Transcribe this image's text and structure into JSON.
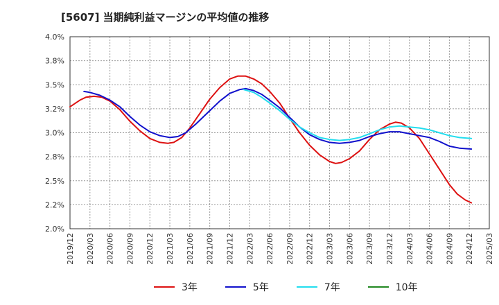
{
  "title": "[5607]  当期純利益マージンの平均値の推移",
  "chart_data": {
    "type": "line",
    "x": [
      "2019/12",
      "2020/03",
      "2020/06",
      "2020/09",
      "2020/12",
      "2021/03",
      "2021/06",
      "2021/09",
      "2021/12",
      "2022/03",
      "2022/06",
      "2022/09",
      "2022/12",
      "2023/03",
      "2023/06",
      "2023/09",
      "2023/12",
      "2024/03",
      "2024/06",
      "2024/09",
      "2024/12",
      "2025/03"
    ],
    "y_ticks": [
      "4.0%",
      "3.8%",
      "3.5%",
      "3.2%",
      "3.0%",
      "2.8%",
      "2.5%",
      "2.2%",
      "2.0%"
    ],
    "ylim": [
      2.0,
      4.0
    ],
    "grid": true,
    "legend_position": "bottom",
    "series": [
      {
        "name": "3年",
        "color": "#dd1111",
        "points": [
          [
            0,
            3.27
          ],
          [
            0.5,
            3.34
          ],
          [
            0.8,
            3.37
          ],
          [
            1.2,
            3.38
          ],
          [
            1.6,
            3.37
          ],
          [
            2,
            3.33
          ],
          [
            2.5,
            3.24
          ],
          [
            3,
            3.12
          ],
          [
            3.5,
            3.02
          ],
          [
            4,
            2.94
          ],
          [
            4.5,
            2.9
          ],
          [
            4.9,
            2.89
          ],
          [
            5.2,
            2.9
          ],
          [
            5.6,
            2.95
          ],
          [
            6,
            3.05
          ],
          [
            6.5,
            3.2
          ],
          [
            7,
            3.35
          ],
          [
            7.5,
            3.47
          ],
          [
            8,
            3.56
          ],
          [
            8.4,
            3.59
          ],
          [
            8.8,
            3.59
          ],
          [
            9.2,
            3.56
          ],
          [
            9.6,
            3.51
          ],
          [
            10,
            3.43
          ],
          [
            10.5,
            3.31
          ],
          [
            11,
            3.15
          ],
          [
            11.5,
            3.0
          ],
          [
            12,
            2.87
          ],
          [
            12.5,
            2.77
          ],
          [
            13,
            2.7
          ],
          [
            13.3,
            2.68
          ],
          [
            13.6,
            2.69
          ],
          [
            14,
            2.73
          ],
          [
            14.5,
            2.81
          ],
          [
            15,
            2.93
          ],
          [
            15.5,
            3.03
          ],
          [
            16,
            3.09
          ],
          [
            16.3,
            3.11
          ],
          [
            16.6,
            3.1
          ],
          [
            17,
            3.05
          ],
          [
            17.5,
            2.94
          ],
          [
            18,
            2.78
          ],
          [
            18.5,
            2.62
          ],
          [
            19,
            2.46
          ],
          [
            19.4,
            2.36
          ],
          [
            19.8,
            2.3
          ],
          [
            20.1,
            2.27
          ]
        ]
      },
      {
        "name": "5年",
        "color": "#1111cc",
        "points": [
          [
            0.7,
            3.43
          ],
          [
            1,
            3.42
          ],
          [
            1.5,
            3.39
          ],
          [
            2,
            3.34
          ],
          [
            2.5,
            3.27
          ],
          [
            3,
            3.17
          ],
          [
            3.5,
            3.08
          ],
          [
            4,
            3.01
          ],
          [
            4.5,
            2.97
          ],
          [
            5,
            2.95
          ],
          [
            5.4,
            2.96
          ],
          [
            5.8,
            3.0
          ],
          [
            6.3,
            3.09
          ],
          [
            7,
            3.23
          ],
          [
            7.5,
            3.33
          ],
          [
            8,
            3.41
          ],
          [
            8.5,
            3.45
          ],
          [
            8.8,
            3.46
          ],
          [
            9.2,
            3.44
          ],
          [
            9.6,
            3.4
          ],
          [
            10,
            3.34
          ],
          [
            10.5,
            3.26
          ],
          [
            11,
            3.16
          ],
          [
            11.5,
            3.06
          ],
          [
            12,
            2.98
          ],
          [
            12.5,
            2.93
          ],
          [
            13,
            2.9
          ],
          [
            13.5,
            2.89
          ],
          [
            14,
            2.9
          ],
          [
            14.5,
            2.92
          ],
          [
            15,
            2.96
          ],
          [
            15.5,
            2.99
          ],
          [
            16,
            3.01
          ],
          [
            16.5,
            3.01
          ],
          [
            17,
            2.99
          ],
          [
            17.5,
            2.97
          ],
          [
            18,
            2.95
          ],
          [
            18.5,
            2.91
          ],
          [
            19,
            2.86
          ],
          [
            19.5,
            2.84
          ],
          [
            20.1,
            2.83
          ]
        ]
      },
      {
        "name": "7年",
        "color": "#22ddee",
        "points": [
          [
            8.7,
            3.45
          ],
          [
            9.2,
            3.42
          ],
          [
            9.6,
            3.37
          ],
          [
            10,
            3.31
          ],
          [
            10.5,
            3.23
          ],
          [
            11,
            3.14
          ],
          [
            11.5,
            3.06
          ],
          [
            12,
            3.0
          ],
          [
            12.5,
            2.95
          ],
          [
            13,
            2.93
          ],
          [
            13.5,
            2.92
          ],
          [
            14,
            2.93
          ],
          [
            14.5,
            2.95
          ],
          [
            15,
            2.99
          ],
          [
            15.5,
            3.03
          ],
          [
            16,
            3.06
          ],
          [
            16.5,
            3.07
          ],
          [
            17,
            3.06
          ],
          [
            17.5,
            3.05
          ],
          [
            18,
            3.03
          ],
          [
            18.5,
            3.0
          ],
          [
            19,
            2.97
          ],
          [
            19.5,
            2.95
          ],
          [
            20.1,
            2.94
          ]
        ]
      },
      {
        "name": "10年",
        "color": "#228822",
        "points": []
      }
    ]
  }
}
